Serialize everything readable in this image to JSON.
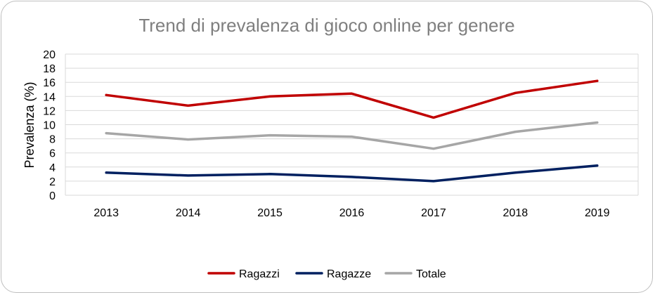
{
  "chart_data": {
    "type": "line",
    "title": "Trend di prevalenza di gioco online per genere",
    "xlabel": "",
    "ylabel": "Prevalenza (%)",
    "categories": [
      "2013",
      "2014",
      "2015",
      "2016",
      "2017",
      "2018",
      "2019"
    ],
    "ylim": [
      0,
      20
    ],
    "yticks": [
      "0",
      "2",
      "4",
      "6",
      "8",
      "10",
      "12",
      "14",
      "16",
      "18",
      "20"
    ],
    "grid": true,
    "legend_position": "bottom",
    "series": [
      {
        "name": "Ragazzi",
        "color": "#c00000",
        "values": [
          14.2,
          12.7,
          14.0,
          14.4,
          11.0,
          14.5,
          16.2
        ]
      },
      {
        "name": "Ragazze",
        "color": "#002060",
        "values": [
          3.2,
          2.8,
          3.0,
          2.6,
          2.0,
          3.2,
          4.2
        ]
      },
      {
        "name": "Totale",
        "color": "#a6a6a6",
        "values": [
          8.8,
          7.9,
          8.5,
          8.3,
          6.6,
          9.0,
          10.3
        ]
      }
    ]
  }
}
